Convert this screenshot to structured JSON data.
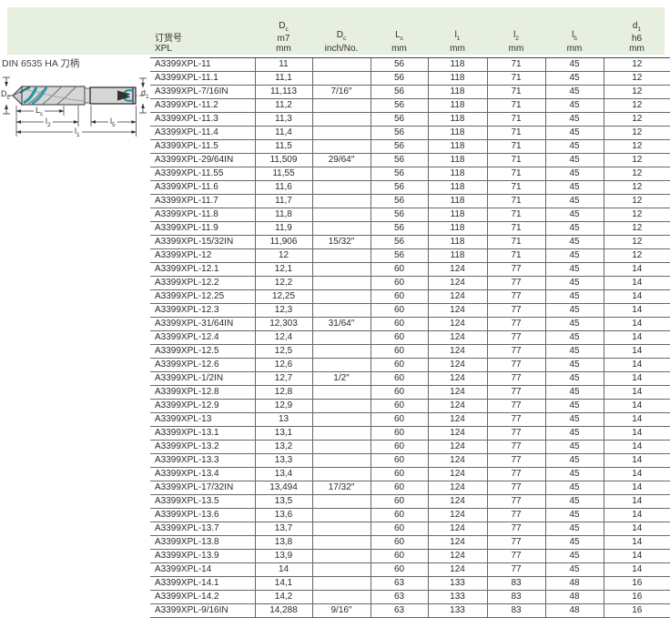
{
  "page": {
    "din_label": "DIN 6535 HA 刀柄"
  },
  "colors": {
    "header_bg": "#e7efe0",
    "accent_teal": "#1b93a3",
    "table_border": "#676767",
    "drawing_fill": "#d6d6d6"
  },
  "diagram": {
    "labels": {
      "dc": {
        "base": "D",
        "sub": "c"
      },
      "d1": {
        "base": "d",
        "sub": "1"
      },
      "lc": {
        "base": "L",
        "sub": "c"
      },
      "l2": {
        "base": "l",
        "sub": "2"
      },
      "l5": {
        "base": "l",
        "sub": "5"
      },
      "l1": {
        "base": "l",
        "sub": "1"
      }
    }
  },
  "table": {
    "headers": [
      {
        "id": "order-no",
        "lines": [
          {
            "t": "订货号"
          },
          {
            "t": "XPL"
          }
        ]
      },
      {
        "id": "dc-mm",
        "lines": [
          {
            "t": "D",
            "s": "c"
          },
          {
            "t": "m7"
          },
          {
            "t": "mm"
          }
        ]
      },
      {
        "id": "dc-inch",
        "lines": [
          {
            "t": "D",
            "s": "c"
          },
          {
            "t": "inch/No."
          }
        ]
      },
      {
        "id": "lc",
        "lines": [
          {
            "t": "L",
            "s": "c"
          },
          {
            "t": "mm"
          }
        ]
      },
      {
        "id": "l1",
        "lines": [
          {
            "t": "l",
            "s": "1"
          },
          {
            "t": "mm"
          }
        ]
      },
      {
        "id": "l2",
        "lines": [
          {
            "t": "l",
            "s": "2"
          },
          {
            "t": "mm"
          }
        ]
      },
      {
        "id": "l5",
        "lines": [
          {
            "t": "l",
            "s": "5"
          },
          {
            "t": "mm"
          }
        ]
      },
      {
        "id": "d1",
        "lines": [
          {
            "t": "d",
            "s": "1"
          },
          {
            "t": "h6"
          },
          {
            "t": "mm"
          }
        ]
      }
    ],
    "rows": [
      [
        "A3399XPL-11",
        "11",
        "",
        "56",
        "118",
        "71",
        "45",
        "12"
      ],
      [
        "A3399XPL-11.1",
        "11,1",
        "",
        "56",
        "118",
        "71",
        "45",
        "12"
      ],
      [
        "A3399XPL-7/16IN",
        "11,113",
        "7/16″",
        "56",
        "118",
        "71",
        "45",
        "12"
      ],
      [
        "A3399XPL-11.2",
        "11,2",
        "",
        "56",
        "118",
        "71",
        "45",
        "12"
      ],
      [
        "A3399XPL-11.3",
        "11,3",
        "",
        "56",
        "118",
        "71",
        "45",
        "12"
      ],
      [
        "A3399XPL-11.4",
        "11,4",
        "",
        "56",
        "118",
        "71",
        "45",
        "12"
      ],
      [
        "A3399XPL-11.5",
        "11,5",
        "",
        "56",
        "118",
        "71",
        "45",
        "12"
      ],
      [
        "A3399XPL-29/64IN",
        "11,509",
        "29/64″",
        "56",
        "118",
        "71",
        "45",
        "12"
      ],
      [
        "A3399XPL-11.55",
        "11,55",
        "",
        "56",
        "118",
        "71",
        "45",
        "12"
      ],
      [
        "A3399XPL-11.6",
        "11,6",
        "",
        "56",
        "118",
        "71",
        "45",
        "12"
      ],
      [
        "A3399XPL-11.7",
        "11,7",
        "",
        "56",
        "118",
        "71",
        "45",
        "12"
      ],
      [
        "A3399XPL-11.8",
        "11,8",
        "",
        "56",
        "118",
        "71",
        "45",
        "12"
      ],
      [
        "A3399XPL-11.9",
        "11,9",
        "",
        "56",
        "118",
        "71",
        "45",
        "12"
      ],
      [
        "A3399XPL-15/32IN",
        "11,906",
        "15/32″",
        "56",
        "118",
        "71",
        "45",
        "12"
      ],
      [
        "A3399XPL-12",
        "12",
        "",
        "56",
        "118",
        "71",
        "45",
        "12"
      ],
      [
        "A3399XPL-12.1",
        "12,1",
        "",
        "60",
        "124",
        "77",
        "45",
        "14"
      ],
      [
        "A3399XPL-12.2",
        "12,2",
        "",
        "60",
        "124",
        "77",
        "45",
        "14"
      ],
      [
        "A3399XPL-12.25",
        "12,25",
        "",
        "60",
        "124",
        "77",
        "45",
        "14"
      ],
      [
        "A3399XPL-12.3",
        "12,3",
        "",
        "60",
        "124",
        "77",
        "45",
        "14"
      ],
      [
        "A3399XPL-31/64IN",
        "12,303",
        "31/64″",
        "60",
        "124",
        "77",
        "45",
        "14"
      ],
      [
        "A3399XPL-12.4",
        "12,4",
        "",
        "60",
        "124",
        "77",
        "45",
        "14"
      ],
      [
        "A3399XPL-12.5",
        "12,5",
        "",
        "60",
        "124",
        "77",
        "45",
        "14"
      ],
      [
        "A3399XPL-12.6",
        "12,6",
        "",
        "60",
        "124",
        "77",
        "45",
        "14"
      ],
      [
        "A3399XPL-1/2IN",
        "12,7",
        "1/2″",
        "60",
        "124",
        "77",
        "45",
        "14"
      ],
      [
        "A3399XPL-12.8",
        "12,8",
        "",
        "60",
        "124",
        "77",
        "45",
        "14"
      ],
      [
        "A3399XPL-12.9",
        "12,9",
        "",
        "60",
        "124",
        "77",
        "45",
        "14"
      ],
      [
        "A3399XPL-13",
        "13",
        "",
        "60",
        "124",
        "77",
        "45",
        "14"
      ],
      [
        "A3399XPL-13.1",
        "13,1",
        "",
        "60",
        "124",
        "77",
        "45",
        "14"
      ],
      [
        "A3399XPL-13.2",
        "13,2",
        "",
        "60",
        "124",
        "77",
        "45",
        "14"
      ],
      [
        "A3399XPL-13.3",
        "13,3",
        "",
        "60",
        "124",
        "77",
        "45",
        "14"
      ],
      [
        "A3399XPL-13.4",
        "13,4",
        "",
        "60",
        "124",
        "77",
        "45",
        "14"
      ],
      [
        "A3399XPL-17/32IN",
        "13,494",
        "17/32″",
        "60",
        "124",
        "77",
        "45",
        "14"
      ],
      [
        "A3399XPL-13.5",
        "13,5",
        "",
        "60",
        "124",
        "77",
        "45",
        "14"
      ],
      [
        "A3399XPL-13.6",
        "13,6",
        "",
        "60",
        "124",
        "77",
        "45",
        "14"
      ],
      [
        "A3399XPL-13.7",
        "13,7",
        "",
        "60",
        "124",
        "77",
        "45",
        "14"
      ],
      [
        "A3399XPL-13.8",
        "13,8",
        "",
        "60",
        "124",
        "77",
        "45",
        "14"
      ],
      [
        "A3399XPL-13.9",
        "13,9",
        "",
        "60",
        "124",
        "77",
        "45",
        "14"
      ],
      [
        "A3399XPL-14",
        "14",
        "",
        "60",
        "124",
        "77",
        "45",
        "14"
      ],
      [
        "A3399XPL-14.1",
        "14,1",
        "",
        "63",
        "133",
        "83",
        "48",
        "16"
      ],
      [
        "A3399XPL-14.2",
        "14,2",
        "",
        "63",
        "133",
        "83",
        "48",
        "16"
      ],
      [
        "A3399XPL-9/16IN",
        "14,288",
        "9/16″",
        "63",
        "133",
        "83",
        "48",
        "16"
      ]
    ]
  }
}
